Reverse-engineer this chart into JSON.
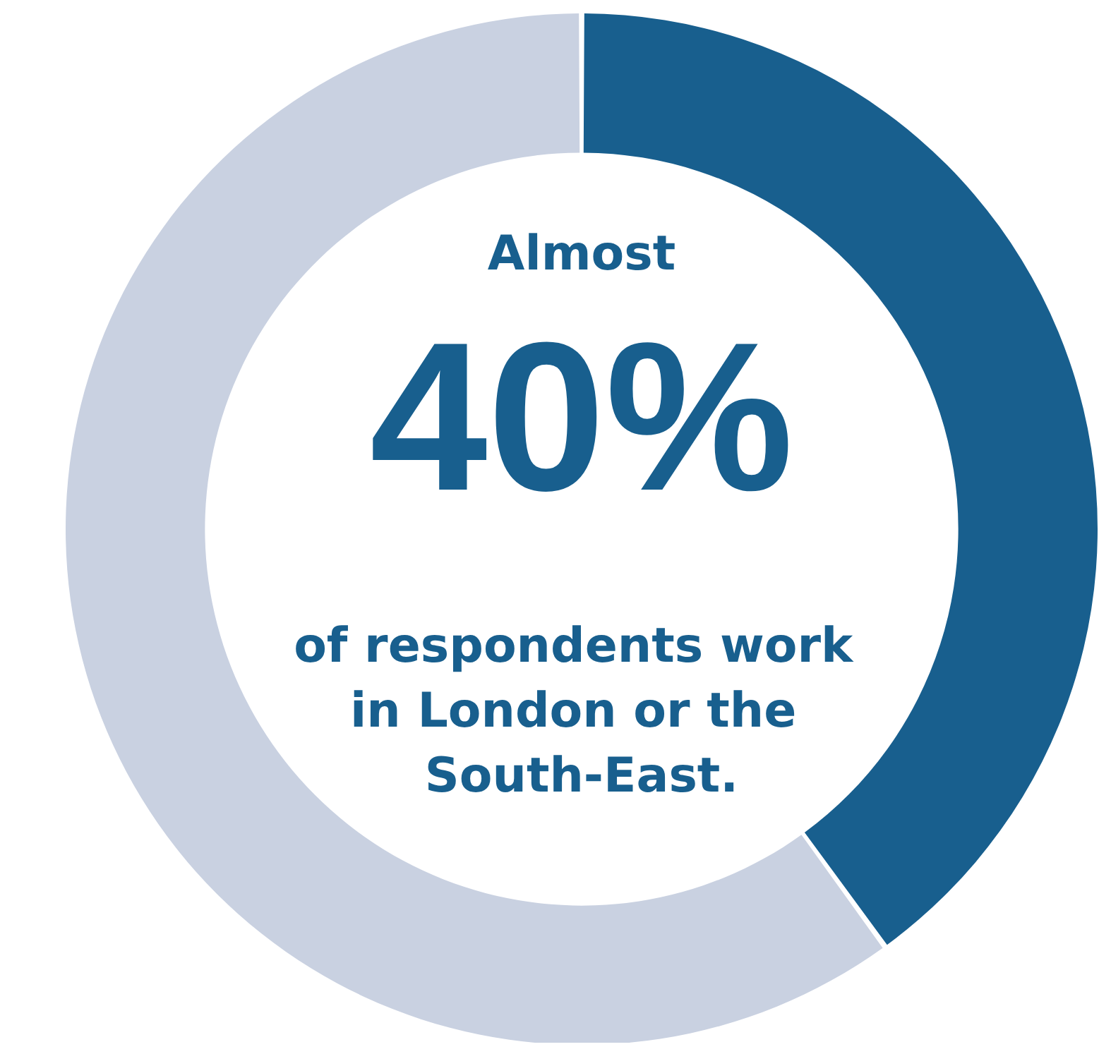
{
  "chart_data": {
    "type": "donut",
    "categories": [
      null,
      null
    ],
    "values": [
      40,
      60
    ],
    "colors": [
      "#185f8e",
      "#c9d1e1"
    ],
    "annotations": [
      "Almost",
      "40%",
      "of respondents work in London or the South-East."
    ]
  }
}
